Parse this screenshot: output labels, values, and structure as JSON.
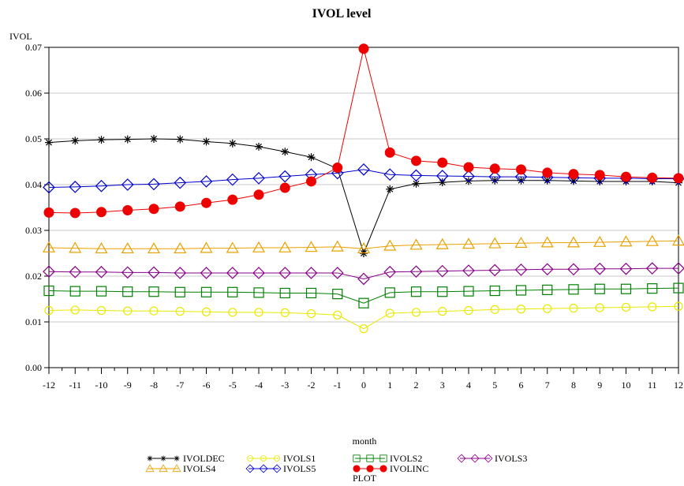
{
  "chart_data": {
    "type": "line",
    "title": "IVOL level",
    "xlabel": "month",
    "ylabel": "IVOL",
    "legend_title": "PLOT",
    "legend_position": "bottom",
    "grid": "horizontal",
    "xlim": [
      -12,
      12
    ],
    "ylim": [
      0,
      0.07
    ],
    "x": [
      -12,
      -11,
      -10,
      -9,
      -8,
      -7,
      -6,
      -5,
      -4,
      -3,
      -2,
      -1,
      0,
      1,
      2,
      3,
      4,
      5,
      6,
      7,
      8,
      9,
      10,
      11,
      12
    ],
    "x_tick_labels": [
      "-12",
      "-11",
      "-10",
      "-9",
      "-8",
      "-7",
      "-6",
      "-5",
      "-4",
      "-3",
      "-2",
      "-1",
      "0",
      "1",
      "2",
      "3",
      "4",
      "5",
      "6",
      "7",
      "8",
      "9",
      "10",
      "11",
      "12"
    ],
    "y_ticks": [
      0,
      0.01,
      0.02,
      0.03,
      0.04,
      0.05,
      0.06,
      0.07
    ],
    "y_tick_labels": [
      "0.00",
      "0.01",
      "0.02",
      "0.03",
      "0.04",
      "0.05",
      "0.06",
      "0.07"
    ],
    "series": [
      {
        "name": "IVOLDEC",
        "color": "#000000",
        "marker": "star",
        "values": [
          0.0492,
          0.0496,
          0.0498,
          0.0499,
          0.05,
          0.0499,
          0.0494,
          0.049,
          0.0483,
          0.0472,
          0.046,
          0.0435,
          0.025,
          0.039,
          0.0402,
          0.0405,
          0.0408,
          0.0409,
          0.0409,
          0.0409,
          0.0408,
          0.0407,
          0.0407,
          0.0407,
          0.0404
        ]
      },
      {
        "name": "IVOLS1",
        "color": "#e8e800",
        "marker": "circle-open",
        "values": [
          0.0125,
          0.0126,
          0.0125,
          0.0124,
          0.0124,
          0.0123,
          0.0122,
          0.0121,
          0.0121,
          0.012,
          0.0118,
          0.0115,
          0.0085,
          0.0119,
          0.0121,
          0.0123,
          0.0125,
          0.0127,
          0.0128,
          0.0129,
          0.013,
          0.0131,
          0.0132,
          0.0133,
          0.0134
        ]
      },
      {
        "name": "IVOLS2",
        "color": "#008000",
        "marker": "square",
        "values": [
          0.0168,
          0.0167,
          0.0167,
          0.0166,
          0.0166,
          0.0165,
          0.0165,
          0.0165,
          0.0164,
          0.0163,
          0.0163,
          0.0161,
          0.0141,
          0.0164,
          0.0166,
          0.0166,
          0.0167,
          0.0168,
          0.0169,
          0.017,
          0.0171,
          0.0172,
          0.0172,
          0.0173,
          0.0174
        ]
      },
      {
        "name": "IVOLS3",
        "color": "#880088",
        "marker": "diamond",
        "values": [
          0.021,
          0.0209,
          0.0209,
          0.0208,
          0.0208,
          0.0207,
          0.0207,
          0.0207,
          0.0207,
          0.0207,
          0.0207,
          0.0207,
          0.0194,
          0.0209,
          0.021,
          0.0211,
          0.0212,
          0.0213,
          0.0214,
          0.0215,
          0.0215,
          0.0216,
          0.0216,
          0.0217,
          0.0217
        ]
      },
      {
        "name": "IVOLS4",
        "color": "#e8a000",
        "marker": "triangle",
        "values": [
          0.0262,
          0.0261,
          0.026,
          0.026,
          0.026,
          0.026,
          0.0261,
          0.0261,
          0.0262,
          0.0262,
          0.0263,
          0.0264,
          0.026,
          0.0266,
          0.0268,
          0.0269,
          0.027,
          0.0271,
          0.0272,
          0.0273,
          0.0273,
          0.0274,
          0.0275,
          0.0276,
          0.0277
        ]
      },
      {
        "name": "IVOLS5",
        "color": "#0000cc",
        "marker": "diamond",
        "values": [
          0.0394,
          0.0395,
          0.0397,
          0.04,
          0.0401,
          0.0404,
          0.0407,
          0.0411,
          0.0414,
          0.0418,
          0.0422,
          0.0425,
          0.0433,
          0.0422,
          0.042,
          0.0419,
          0.0418,
          0.0417,
          0.0417,
          0.0416,
          0.0415,
          0.0414,
          0.0414,
          0.0413,
          0.0413
        ]
      },
      {
        "name": "IVOLINC",
        "color": "#ee0000",
        "marker": "circle-filled",
        "values": [
          0.0339,
          0.0338,
          0.034,
          0.0344,
          0.0347,
          0.0352,
          0.036,
          0.0367,
          0.0378,
          0.0393,
          0.0407,
          0.0437,
          0.0697,
          0.047,
          0.0452,
          0.0448,
          0.0438,
          0.0435,
          0.0433,
          0.0426,
          0.0423,
          0.0421,
          0.0417,
          0.0415,
          0.0414
        ]
      }
    ]
  }
}
